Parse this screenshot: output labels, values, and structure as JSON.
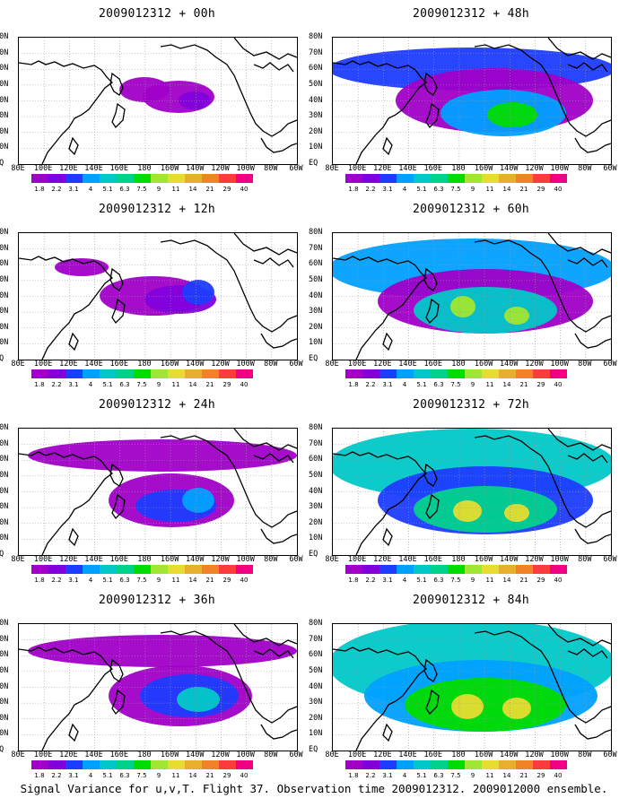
{
  "caption": "Signal Variance for u,v,T. Flight 37. Observation time 2009012312. 2009012000 ensemble.",
  "panels": [
    {
      "title": "2009012312 + 00h",
      "level": 1
    },
    {
      "title": "2009012312 + 48h",
      "level": 5
    },
    {
      "title": "2009012312 + 12h",
      "level": 2
    },
    {
      "title": "2009012312 + 60h",
      "level": 6
    },
    {
      "title": "2009012312 + 24h",
      "level": 3
    },
    {
      "title": "2009012312 + 72h",
      "level": 7
    },
    {
      "title": "2009012312 + 36h",
      "level": 4
    },
    {
      "title": "2009012312 + 84h",
      "level": 8
    }
  ],
  "lat_labels": [
    "80N",
    "70N",
    "60N",
    "50N",
    "40N",
    "30N",
    "20N",
    "10N",
    "EQ"
  ],
  "lon_labels": [
    "80E",
    "100E",
    "120E",
    "140E",
    "160E",
    "180",
    "160W",
    "140W",
    "120W",
    "100W",
    "80W",
    "60W"
  ],
  "colorbar": {
    "labels": [
      "1.8",
      "2.2",
      "3.1",
      "4",
      "5.1",
      "6.3",
      "7.5",
      "9",
      "11",
      "14",
      "21",
      "29",
      "40"
    ],
    "colors": [
      "#a000c8",
      "#8200dc",
      "#1e3cff",
      "#00a0ff",
      "#00c8c8",
      "#00d28c",
      "#00dc00",
      "#a0e632",
      "#e6dc32",
      "#e6af2d",
      "#f08228",
      "#fa3c3c",
      "#f00082"
    ]
  }
}
